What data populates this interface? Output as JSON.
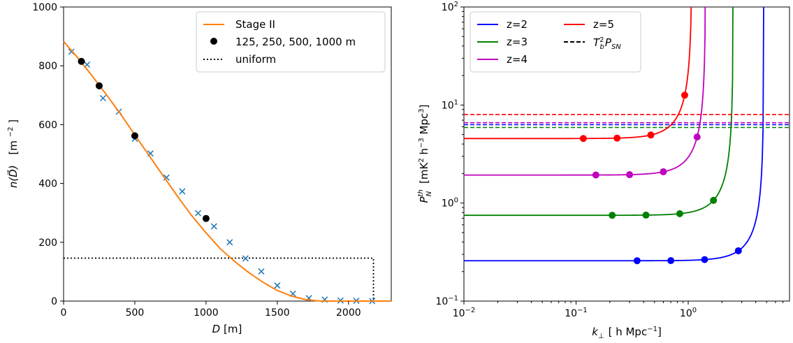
{
  "chart_data": [
    {
      "type": "line",
      "ylabel_text": "[m",
      "ylabel_sup": "−2",
      "ylabel_close": "]",
      "ylabel_italic": "n(D⃗)",
      "xlabel_italic": "D",
      "xlabel_unit": " [m]",
      "xlim": [
        0,
        2300
      ],
      "ylim": [
        0,
        1000
      ],
      "xticks": [
        0,
        500,
        1000,
        1500,
        2000
      ],
      "yticks": [
        0,
        200,
        400,
        600,
        800,
        1000
      ],
      "grid": false,
      "legend_position": "top-right",
      "series": [
        {
          "name": "Stage II",
          "kind": "line",
          "color": "#ff7f0e",
          "x": [
            0,
            100,
            200,
            300,
            400,
            500,
            600,
            700,
            800,
            900,
            1000,
            1100,
            1200,
            1300,
            1400,
            1500,
            1600,
            1700,
            1800,
            1900,
            2000,
            2100,
            2200,
            2300
          ],
          "y": [
            883,
            827,
            766,
            702,
            636,
            565,
            495,
            425,
            356,
            290,
            232,
            178,
            135,
            97,
            64,
            36,
            17,
            5,
            0,
            0,
            0,
            0,
            0,
            0
          ]
        },
        {
          "name": "125, 250, 500, 1000 m",
          "kind": "points",
          "color": "#000000",
          "x": [
            125,
            250,
            500,
            1000
          ],
          "y": [
            815,
            732,
            562,
            281
          ]
        },
        {
          "name": "",
          "kind": "crosses",
          "color": "#1f77b4",
          "x": [
            55,
            165,
            277,
            388,
            500,
            610,
            722,
            833,
            944,
            1056,
            1166,
            1277,
            1388,
            1500,
            1610,
            1722,
            1833,
            1944,
            2055,
            2166
          ],
          "y": [
            848,
            804,
            690,
            644,
            552,
            502,
            420,
            373,
            299,
            254,
            200,
            145,
            101,
            53,
            25,
            10,
            5,
            2,
            1,
            0
          ]
        },
        {
          "name": "uniform",
          "kind": "dotted",
          "color": "#000000",
          "x": [
            0,
            2175,
            2175
          ],
          "y": [
            146,
            146,
            0
          ]
        }
      ]
    },
    {
      "type": "line",
      "yscale": "log",
      "xscale": "log",
      "ylabel_main": "P",
      "ylabel_sub": "N",
      "ylabel_sup": "th",
      "ylabel_unit": "[mK",
      "ylabel_unit2": " h",
      "ylabel_unit3": " Mpc",
      "ylabel_unit_close": "]",
      "xlabel_main": "k",
      "xlabel_sub": "⊥",
      "xlabel_unit": "[ h Mpc",
      "xlabel_unit_close": "]",
      "xlim": [
        0.01,
        8
      ],
      "ylim": [
        0.1,
        100
      ],
      "xticks": [
        "10",
        "10",
        "10"
      ],
      "xtick_exps": [
        "−2",
        "−1",
        "0"
      ],
      "xtick_vals": [
        0.01,
        0.1,
        1
      ],
      "yticks": [
        "10",
        "10",
        "10",
        "10"
      ],
      "ytick_exps": [
        "−1",
        "0",
        "1",
        "2"
      ],
      "ytick_vals": [
        0.1,
        1,
        10,
        100
      ],
      "grid": false,
      "legend_position": "top-left",
      "legend_dash_label_main": "T",
      "legend_dash_label_b": "b",
      "legend_dash_label_2": "2",
      "legend_dash_label_P": "P",
      "legend_dash_label_SN": "SN",
      "series": [
        {
          "name": "z=2",
          "color": "#0000ff",
          "a": 0.258,
          "kmax": 4.72,
          "n": 3,
          "dots_k": [
            0.35,
            0.7,
            1.4,
            2.8
          ],
          "sn_level": 6.3
        },
        {
          "name": "z=3",
          "color": "#008000",
          "a": 0.75,
          "kmax": 2.52,
          "n": 3,
          "dots_k": [
            0.21,
            0.42,
            0.84,
            1.68
          ],
          "sn_level": 5.9
        },
        {
          "name": "z=4",
          "color": "#bf00bf",
          "a": 1.93,
          "kmax": 1.43,
          "n": 3,
          "dots_k": [
            0.15,
            0.3,
            0.6,
            1.2
          ],
          "sn_level": 6.6
        },
        {
          "name": "z=5",
          "color": "#ff0000",
          "a": 4.55,
          "kmax": 1.08,
          "n": 3,
          "dots_k": [
            0.116,
            0.232,
            0.464,
            0.93
          ],
          "sn_level": 8.0
        }
      ]
    }
  ]
}
